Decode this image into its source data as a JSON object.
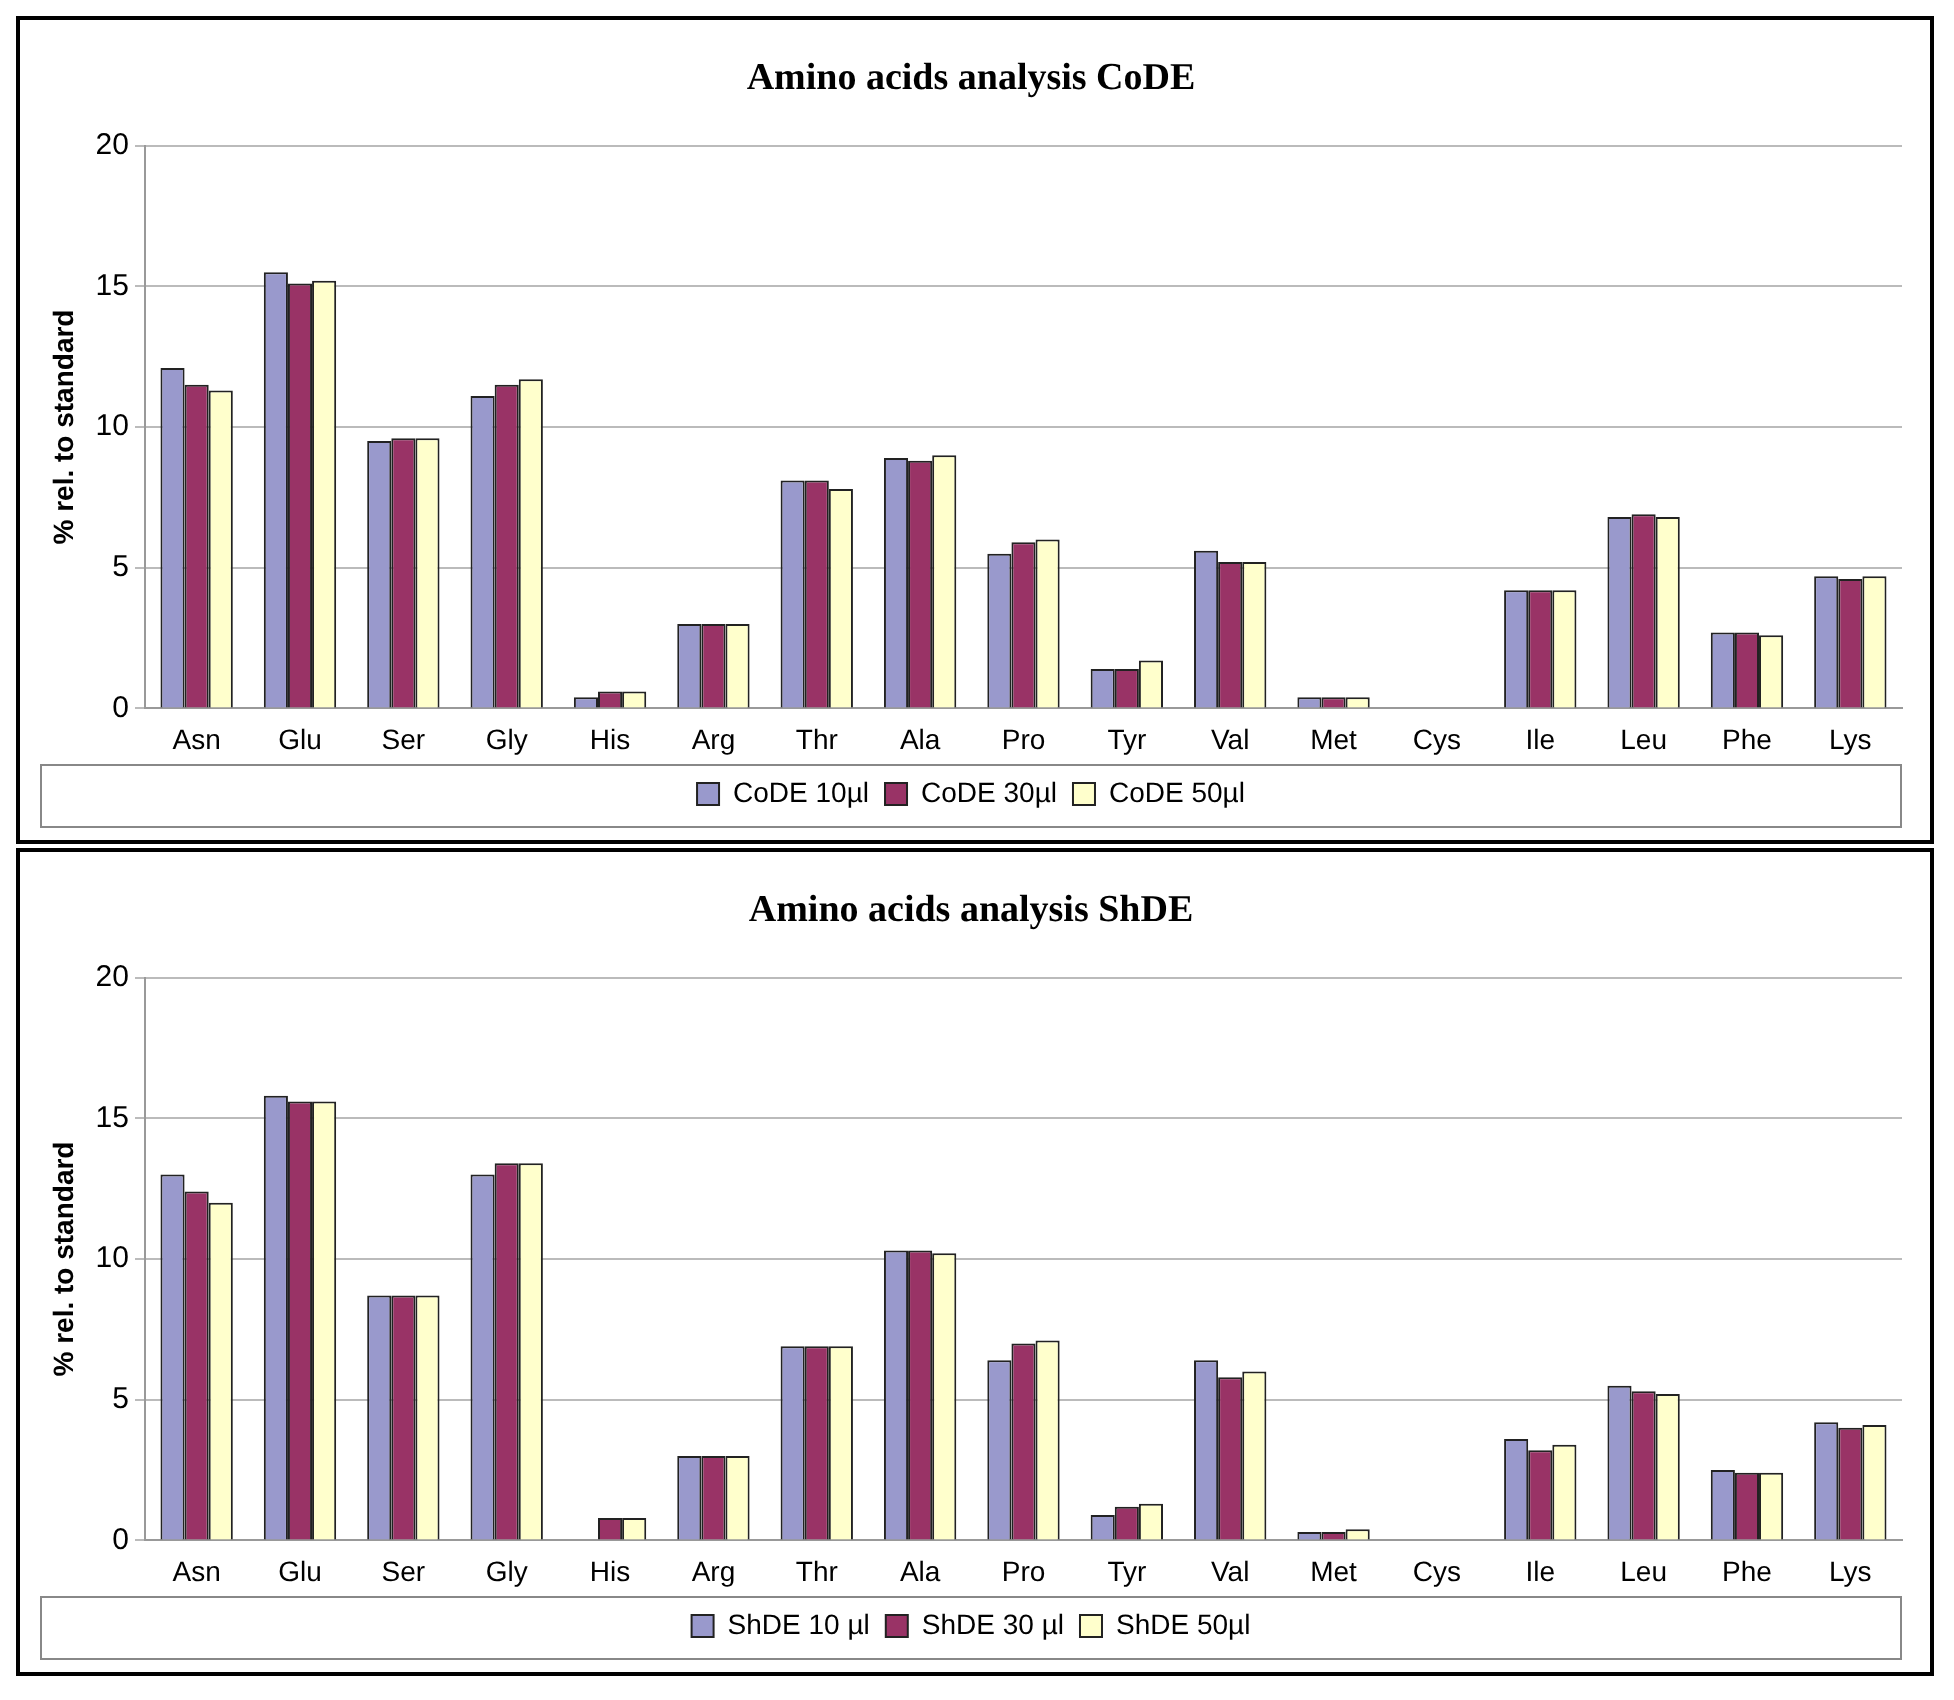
{
  "chart_data": [
    {
      "type": "bar",
      "title": "Amino acids analysis CoDE",
      "ylabel": "% rel. to standard",
      "categories": [
        "Asn",
        "Glu",
        "Ser",
        "Gly",
        "His",
        "Arg",
        "Thr",
        "Ala",
        "Pro",
        "Tyr",
        "Val",
        "Met",
        "Cys",
        "Ile",
        "Leu",
        "Phe",
        "Lys"
      ],
      "ylim": [
        0,
        20
      ],
      "yticks": [
        0,
        5,
        10,
        15,
        20
      ],
      "grid": "y",
      "legend": "bottom",
      "series": [
        {
          "name": "CoDE 10µl",
          "color": "#9999cc",
          "values": [
            12.1,
            15.5,
            9.5,
            11.1,
            0.4,
            3.0,
            8.1,
            8.9,
            5.5,
            1.4,
            5.6,
            0.4,
            0,
            4.2,
            6.8,
            2.7,
            4.7
          ]
        },
        {
          "name": "CoDE 30µl",
          "color": "#993366",
          "values": [
            11.5,
            15.1,
            9.6,
            11.5,
            0.6,
            3.0,
            8.1,
            8.8,
            5.9,
            1.4,
            5.2,
            0.4,
            0,
            4.2,
            6.9,
            2.7,
            4.6
          ]
        },
        {
          "name": "CoDE 50µl",
          "color": "#ffffcc",
          "values": [
            11.3,
            15.2,
            9.6,
            11.7,
            0.6,
            3.0,
            7.8,
            9.0,
            6.0,
            1.7,
            5.2,
            0.4,
            0,
            4.2,
            6.8,
            2.6,
            4.7
          ]
        }
      ]
    },
    {
      "type": "bar",
      "title": "Amino acids analysis ShDE",
      "ylabel": "% rel. to standard",
      "categories": [
        "Asn",
        "Glu",
        "Ser",
        "Gly",
        "His",
        "Arg",
        "Thr",
        "Ala",
        "Pro",
        "Tyr",
        "Val",
        "Met",
        "Cys",
        "Ile",
        "Leu",
        "Phe",
        "Lys"
      ],
      "ylim": [
        0,
        20
      ],
      "yticks": [
        0,
        5,
        10,
        15,
        20
      ],
      "grid": "y",
      "legend": "bottom",
      "series": [
        {
          "name": "ShDE 10 µl",
          "color": "#9999cc",
          "values": [
            13.0,
            15.8,
            8.7,
            13.0,
            0,
            3.0,
            6.9,
            10.3,
            6.4,
            0.9,
            6.4,
            0.3,
            0,
            3.6,
            5.5,
            2.5,
            4.2
          ]
        },
        {
          "name": "ShDE 30 µl",
          "color": "#993366",
          "values": [
            12.4,
            15.6,
            8.7,
            13.4,
            0.8,
            3.0,
            6.9,
            10.3,
            7.0,
            1.2,
            5.8,
            0.3,
            0,
            3.2,
            5.3,
            2.4,
            4.0
          ]
        },
        {
          "name": "ShDE 50µl",
          "color": "#ffffcc",
          "values": [
            12.0,
            15.6,
            8.7,
            13.4,
            0.8,
            3.0,
            6.9,
            10.2,
            7.1,
            1.3,
            6.0,
            0.4,
            0,
            3.4,
            5.2,
            2.4,
            4.1
          ]
        }
      ]
    }
  ]
}
